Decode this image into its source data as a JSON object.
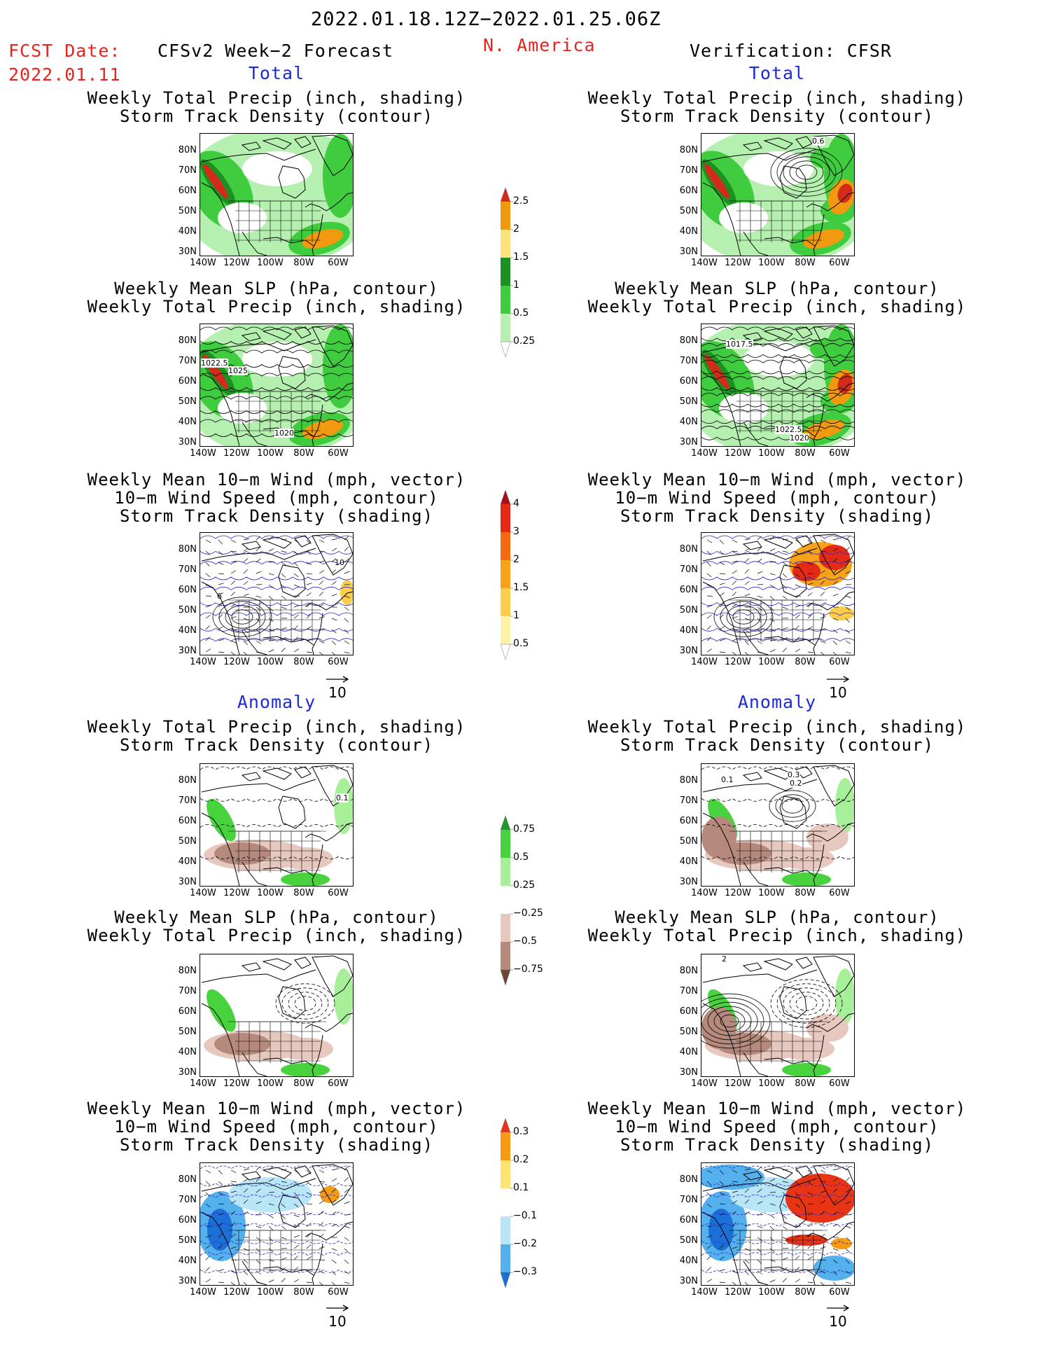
{
  "header": {
    "period": "2022.01.18.12Z−2022.01.25.06Z",
    "fcst_date_label": "FCST Date:",
    "fcst_date": "2022.01.11",
    "left_title": "CFSv2 Week−2 Forecast",
    "region": "N. America",
    "right_title": "Verification: CFSR"
  },
  "sections": {
    "total": "Total",
    "anomaly": "Anomaly"
  },
  "panel_titles": {
    "precip_storm": [
      "Weekly Total Precip (inch, shading)",
      "Storm Track Density (contour)"
    ],
    "slp_precip": [
      "Weekly Mean SLP (hPa, contour)",
      "Weekly Total Precip (inch, shading)"
    ],
    "wind_storm": [
      "Weekly Mean 10−m Wind (mph, vector)",
      "10−m Wind Speed (mph, contour)",
      "Storm Track Density (shading)"
    ]
  },
  "axes": {
    "lat_labels": [
      "80N",
      "70N",
      "60N",
      "50N",
      "40N",
      "30N"
    ],
    "lon_labels": [
      "140W",
      "120W",
      "100W",
      "80W",
      "60W"
    ]
  },
  "contour_labels": {
    "f_slp_1": "1022.5",
    "f_slp_2": "1025",
    "f_slp_3": "1020",
    "v_slp_1": "1017.5",
    "v_slp_2": "1022.5",
    "v_slp_3": "1020",
    "v_storm_1": "0.6",
    "f_wind_1": "10",
    "f_wind_2": "6",
    "a_f_storm_1": "0.1",
    "a_v_storm_1": "0.3",
    "a_v_storm_2": "0.2",
    "a_v_storm_3": "0.1",
    "a_v_slp_1": "2"
  },
  "vector_reference": "10",
  "colorbars": {
    "precip_total": {
      "labels": [
        "2.5",
        "2",
        "1.5",
        "1",
        "0.5",
        "0.25"
      ],
      "colors": [
        "#d42a1a",
        "#f29a0f",
        "#fbe27a",
        "#1e8f22",
        "#3fcd3f",
        "#b6f0b0"
      ]
    },
    "storm_total": {
      "labels": [
        "4",
        "3",
        "2",
        "1.5",
        "1",
        "0.5"
      ],
      "colors": [
        "#a5101a",
        "#e42a16",
        "#f36a10",
        "#f8a21a",
        "#fbcd4a",
        "#fdf3a8"
      ]
    },
    "precip_anom": {
      "labels": [
        "0.75",
        "0.5",
        "0.25",
        "−0.25",
        "−0.5",
        "−0.75"
      ],
      "colors": [
        "#1e9a2a",
        "#48d23e",
        "#a8ef9a",
        "#ffffff",
        "#e6c8be",
        "#b58a7c",
        "#6e4538"
      ]
    },
    "storm_anom": {
      "labels": [
        "0.3",
        "0.2",
        "0.1",
        "−0.1",
        "−0.2",
        "−0.3"
      ],
      "colors": [
        "#e83414",
        "#f69a12",
        "#fde371",
        "#ffffff",
        "#b8e6f7",
        "#55b0ee",
        "#1b6fd6"
      ]
    }
  }
}
